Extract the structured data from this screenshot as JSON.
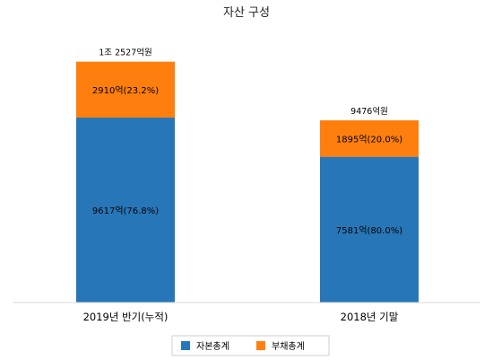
{
  "chart_data": {
    "type": "bar",
    "stacked": true,
    "title": "자산 구성",
    "xlabel": "",
    "ylabel": "",
    "categories": [
      "2019년 반기(누적)",
      "2018년 기말"
    ],
    "totals": [
      12527,
      9476
    ],
    "total_labels": [
      "1조 2527억원",
      "9476억원"
    ],
    "series": [
      {
        "name": "자본총계",
        "color": "#2777b8",
        "values": [
          9617,
          7581
        ],
        "labels": [
          "9617억(76.8%)",
          "7581억(80.0%)"
        ]
      },
      {
        "name": "부채총계",
        "color": "#ff7f0e",
        "values": [
          2910,
          1895
        ],
        "labels": [
          "2910억(23.2%)",
          "1895억(20.0%)"
        ]
      }
    ],
    "ylim": [
      0,
      14800
    ],
    "grid": false,
    "legend_position": "bottom"
  }
}
